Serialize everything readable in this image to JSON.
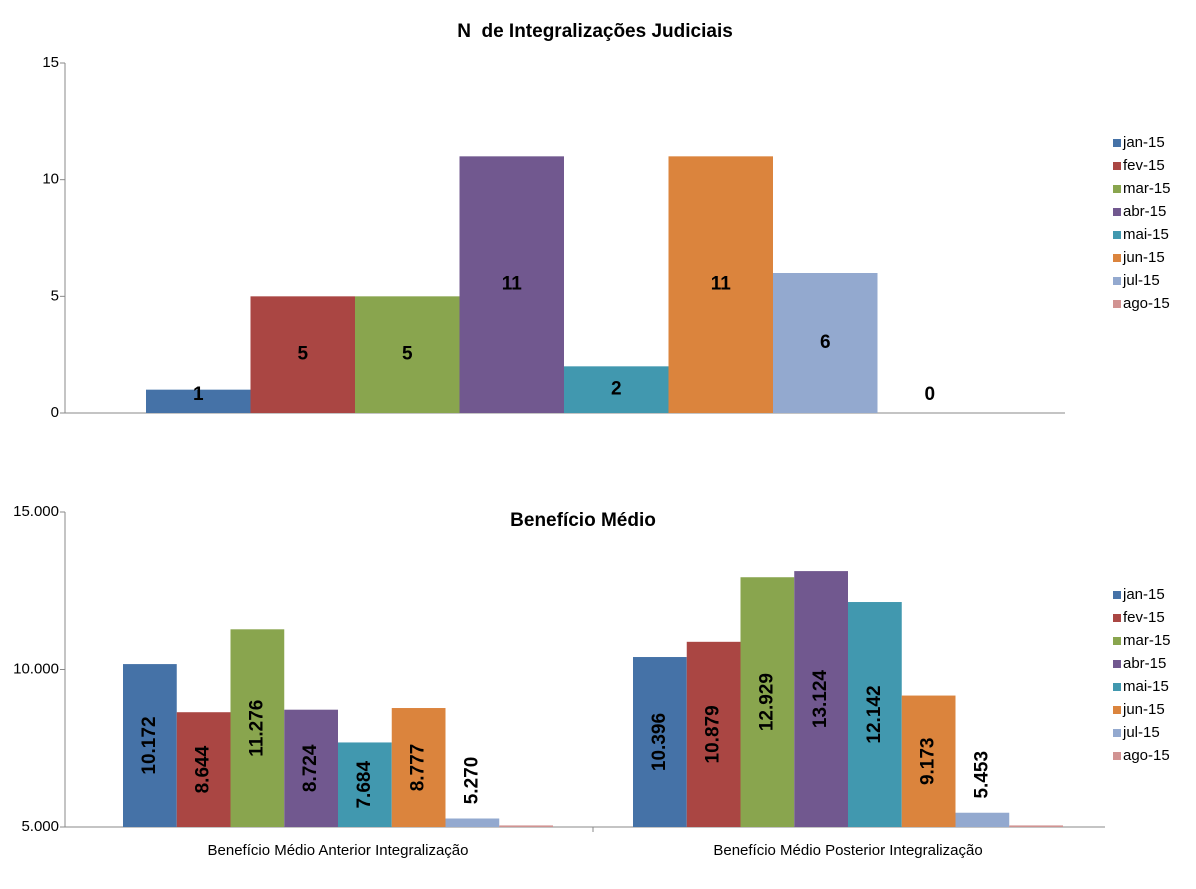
{
  "chart_data": [
    {
      "type": "bar",
      "title": "N  de Integralizações Judiciais",
      "categories": [
        null
      ],
      "ylim": [
        0,
        15
      ],
      "yticks": [
        0,
        5,
        10,
        15
      ],
      "grid": false,
      "legend": "right",
      "series": [
        {
          "name": "jan-15",
          "color": "#4572a7",
          "values": [
            1
          ]
        },
        {
          "name": "fev-15",
          "color": "#aa4643",
          "values": [
            5
          ]
        },
        {
          "name": "mar-15",
          "color": "#89a54e",
          "values": [
            5
          ]
        },
        {
          "name": "abr-15",
          "color": "#71588f",
          "values": [
            11
          ]
        },
        {
          "name": "mai-15",
          "color": "#4198af",
          "values": [
            2
          ]
        },
        {
          "name": "jun-15",
          "color": "#db843d",
          "values": [
            11
          ]
        },
        {
          "name": "jul-15",
          "color": "#93a9cf",
          "values": [
            6
          ]
        },
        {
          "name": "ago-15",
          "color": "#d19392",
          "values": [
            0
          ]
        }
      ]
    },
    {
      "type": "bar",
      "title": "Benefício Médio",
      "categories": [
        "Benefício Médio Anterior Integralização",
        "Benefício Médio Posterior Integralização"
      ],
      "ylim": [
        5000,
        15000
      ],
      "yticks": [
        {
          "value": 5000,
          "label": "5.000"
        },
        {
          "value": 10000,
          "label": "10.000"
        },
        {
          "value": 15000,
          "label": "15.000"
        }
      ],
      "grid": false,
      "legend": "right",
      "series": [
        {
          "name": "jan-15",
          "color": "#4572a7",
          "values": [
            10172,
            10396
          ],
          "value_labels": [
            "10.172",
            "10.396"
          ]
        },
        {
          "name": "fev-15",
          "color": "#aa4643",
          "values": [
            8644,
            10879
          ],
          "value_labels": [
            "8.644",
            "10.879"
          ]
        },
        {
          "name": "mar-15",
          "color": "#89a54e",
          "values": [
            11276,
            12929
          ],
          "value_labels": [
            "11.276",
            "12.929"
          ]
        },
        {
          "name": "abr-15",
          "color": "#71588f",
          "values": [
            8724,
            13124
          ],
          "value_labels": [
            "8.724",
            "13.124"
          ]
        },
        {
          "name": "mai-15",
          "color": "#4198af",
          "values": [
            7684,
            12142
          ],
          "value_labels": [
            "7.684",
            "12.142"
          ]
        },
        {
          "name": "jun-15",
          "color": "#db843d",
          "values": [
            8777,
            9173
          ],
          "value_labels": [
            "8.777",
            "9.173"
          ]
        },
        {
          "name": "jul-15",
          "color": "#93a9cf",
          "values": [
            5270,
            5453
          ],
          "value_labels": [
            "5.270",
            "5.453"
          ]
        },
        {
          "name": "ago-15",
          "color": "#d19392",
          "values": [
            5050,
            5050
          ]
        }
      ]
    }
  ]
}
